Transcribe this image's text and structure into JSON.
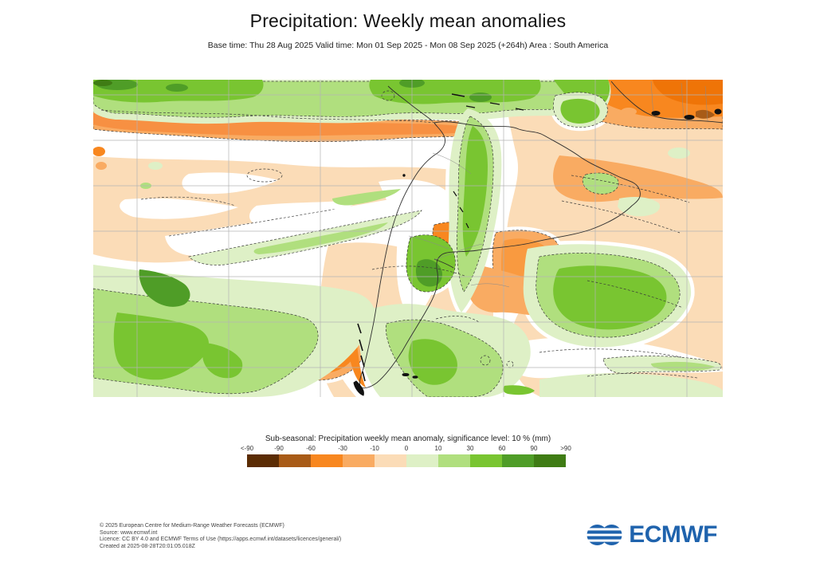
{
  "header": {
    "title": "Precipitation: Weekly mean anomalies",
    "subtitle": "Base time: Thu 28 Aug 2025 Valid time: Mon 01 Sep 2025 - Mon 08 Sep 2025 (+264h) Area : South America"
  },
  "map": {
    "area_label": "South America",
    "type": "filled-contour geographic anomaly map with significance contours (dashed), lat/lon gridlines and coastlines",
    "units": "mm",
    "features": [
      {
        "region": "band along northern South America / southern Caribbean (top of map)",
        "anomaly": "positive, mostly +10 to +60 mm, local spots above +60 mm"
      },
      {
        "region": "east Pacific ITCZ band just south of the green band (west half of map)",
        "anomaly": "negative, -30 to -60 mm"
      },
      {
        "region": "tropical North Atlantic / West Africa (top right corner)",
        "anomaly": "negative, -30 to -90 mm"
      },
      {
        "region": "Andes corridor Colombia-Ecuador-Peru-Bolivia",
        "anomaly": "positive, +10 to +30 mm"
      },
      {
        "region": "Uruguay / far south Brazil",
        "anomaly": "positive, +30 to +60 mm"
      },
      {
        "region": "central-south Argentina corridor",
        "anomaly": "positive, +10 to +30 mm"
      },
      {
        "region": "southeast Pacific (bottom left quadrant)",
        "anomaly": "positive, +10 to +30 mm"
      },
      {
        "region": "south-central Pacific off Chile and southern Andes / Patagonia",
        "anomaly": "negative, -30 to -60 mm"
      },
      {
        "region": "Rio de la Plata mouth and ocean southeast of Brazil",
        "anomaly": "negative, -10 to -60 mm"
      },
      {
        "region": "South Atlantic blob (bottom right quadrant)",
        "anomaly": "positive, +10 to +30 mm"
      },
      {
        "region": "most remaining ocean areas",
        "anomaly": "weak negative, 0 to -10 mm (pale peach) with non-significant white gaps"
      }
    ]
  },
  "legend": {
    "title": "Sub-seasonal: Precipitation weekly mean anomaly, significance level: 10 % (mm)",
    "ticks": [
      "<-90",
      "-90",
      "-60",
      "-30",
      "-10",
      "0",
      "10",
      "30",
      "60",
      "90",
      ">90"
    ],
    "colors": [
      "#5b2c04",
      "#a85b17",
      "#f8871f",
      "#f9ab62",
      "#fbdcb7",
      "#def0c6",
      "#b0df7e",
      "#79c531",
      "#4f9d27",
      "#3f7c14"
    ]
  },
  "footer": {
    "lines": [
      "© 2025 European Centre for Medium-Range Weather Forecasts (ECMWF)",
      "Source: www.ecmwf.int",
      "Licence: CC BY 4.0 and ECMWF Terms of Use (https://apps.ecmwf.int/datasets/licences/general/)",
      "Created at 2025-08-28T20:01:05.018Z"
    ],
    "logo_text": "ECMWF",
    "logo_color": "#1f63ad"
  }
}
